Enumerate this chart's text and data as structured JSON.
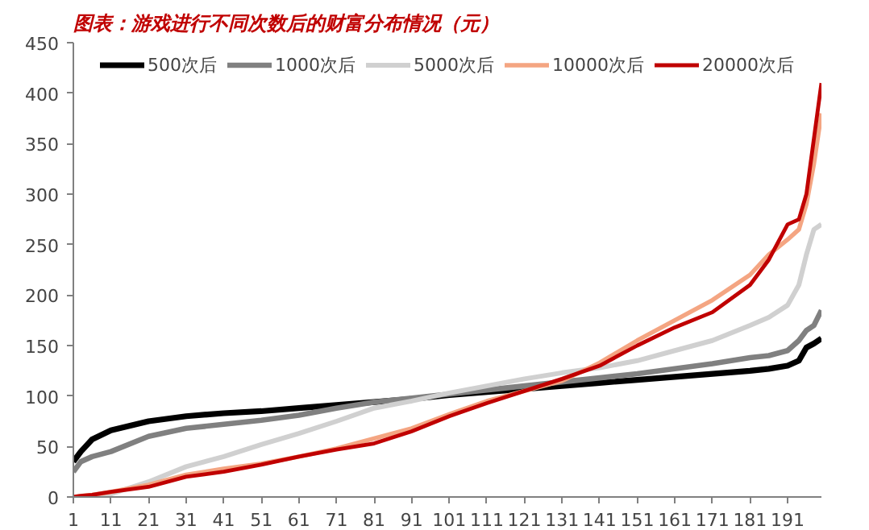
{
  "chart_data": {
    "type": "line",
    "title": "图表：游戏进行不同次数后的财富分布情况（元）",
    "x": [
      1,
      3,
      6,
      11,
      21,
      31,
      41,
      51,
      61,
      71,
      81,
      91,
      101,
      111,
      121,
      131,
      141,
      151,
      161,
      171,
      181,
      186,
      191,
      194,
      196,
      198,
      200
    ],
    "xlim": [
      1,
      200
    ],
    "xticks": [
      1,
      11,
      21,
      31,
      41,
      51,
      61,
      71,
      81,
      91,
      101,
      111,
      121,
      131,
      141,
      151,
      161,
      171,
      181,
      191
    ],
    "ylim": [
      0,
      450
    ],
    "yticks": [
      0,
      50,
      100,
      150,
      200,
      250,
      300,
      350,
      400,
      450
    ],
    "grid": false,
    "legend": "top",
    "marker": "none",
    "line_style": "solid",
    "series": [
      {
        "name": "500次后",
        "color": "#000000",
        "values": [
          35,
          45,
          57,
          66,
          75,
          80,
          83,
          85,
          88,
          91,
          94,
          97,
          101,
          104,
          107,
          110,
          113,
          116,
          119,
          122,
          125,
          127,
          130,
          135,
          148,
          152,
          157
        ]
      },
      {
        "name": "1000次后",
        "color": "#808080",
        "values": [
          25,
          35,
          40,
          45,
          60,
          68,
          72,
          76,
          81,
          88,
          94,
          98,
          102,
          106,
          110,
          114,
          118,
          122,
          127,
          132,
          138,
          140,
          145,
          155,
          165,
          170,
          185
        ]
      },
      {
        "name": "5000次后",
        "color": "#d0d0d0",
        "values": [
          0,
          0,
          1,
          3,
          15,
          30,
          40,
          52,
          63,
          75,
          88,
          95,
          103,
          110,
          117,
          123,
          128,
          135,
          145,
          155,
          170,
          178,
          190,
          210,
          240,
          265,
          270
        ]
      },
      {
        "name": "10000次后",
        "color": "#f4a582",
        "values": [
          0,
          1,
          2,
          5,
          12,
          22,
          28,
          33,
          40,
          48,
          58,
          68,
          82,
          95,
          105,
          115,
          133,
          155,
          175,
          195,
          220,
          240,
          255,
          265,
          290,
          330,
          380
        ]
      },
      {
        "name": "20000次后",
        "color": "#c00000",
        "values": [
          0,
          1,
          2,
          5,
          10,
          20,
          25,
          32,
          40,
          47,
          53,
          65,
          80,
          93,
          105,
          117,
          130,
          150,
          168,
          183,
          210,
          235,
          270,
          275,
          300,
          355,
          410
        ]
      }
    ]
  }
}
